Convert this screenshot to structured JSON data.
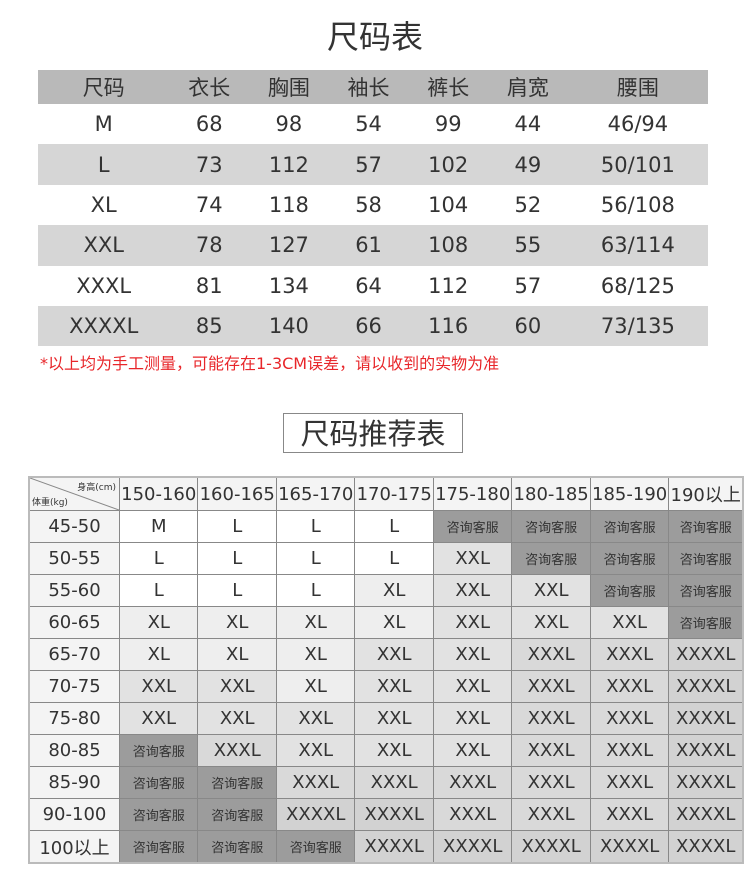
{
  "size_chart": {
    "title": "尺码表",
    "headers": [
      "尺码",
      "衣长",
      "胸围",
      "袖长",
      "裤长",
      "肩宽",
      "腰围"
    ],
    "rows": [
      [
        "M",
        "68",
        "98",
        "54",
        "99",
        "44",
        "46/94"
      ],
      [
        "L",
        "73",
        "112",
        "57",
        "102",
        "49",
        "50/101"
      ],
      [
        "XL",
        "74",
        "118",
        "58",
        "104",
        "52",
        "56/108"
      ],
      [
        "XXL",
        "78",
        "127",
        "61",
        "108",
        "55",
        "63/114"
      ],
      [
        "XXXL",
        "81",
        "134",
        "64",
        "112",
        "57",
        "68/125"
      ],
      [
        "XXXXL",
        "85",
        "140",
        "66",
        "116",
        "60",
        "73/135"
      ]
    ],
    "note": "*以上均为手工测量，可能存在1-3CM误差，请以收到的实物为准"
  },
  "recommend_chart": {
    "title": "尺码推荐表",
    "corner_height": "身高(cm)",
    "corner_weight": "体重(kg)",
    "heights": [
      "150-160",
      "160-165",
      "165-170",
      "170-175",
      "175-180",
      "180-185",
      "185-190",
      "190以上"
    ],
    "rows": [
      {
        "weight": "45-50",
        "sizes": [
          "M",
          "L",
          "L",
          "L",
          "咨询客服",
          "咨询客服",
          "咨询客服",
          "咨询客服"
        ]
      },
      {
        "weight": "50-55",
        "sizes": [
          "L",
          "L",
          "L",
          "L",
          "XXL",
          "咨询客服",
          "咨询客服",
          "咨询客服"
        ]
      },
      {
        "weight": "55-60",
        "sizes": [
          "L",
          "L",
          "L",
          "XL",
          "XXL",
          "XXL",
          "咨询客服",
          "咨询客服"
        ]
      },
      {
        "weight": "60-65",
        "sizes": [
          "XL",
          "XL",
          "XL",
          "XL",
          "XXL",
          "XXL",
          "XXL",
          "咨询客服"
        ]
      },
      {
        "weight": "65-70",
        "sizes": [
          "XL",
          "XL",
          "XL",
          "XXL",
          "XXL",
          "XXXL",
          "XXXL",
          "XXXXL"
        ]
      },
      {
        "weight": "70-75",
        "sizes": [
          "XXL",
          "XXL",
          "XL",
          "XXL",
          "XXL",
          "XXXL",
          "XXXL",
          "XXXXL"
        ]
      },
      {
        "weight": "75-80",
        "sizes": [
          "XXL",
          "XXL",
          "XXL",
          "XXL",
          "XXL",
          "XXXL",
          "XXXL",
          "XXXXL"
        ]
      },
      {
        "weight": "80-85",
        "sizes": [
          "咨询客服",
          "XXXL",
          "XXL",
          "XXL",
          "XXL",
          "XXXL",
          "XXXL",
          "XXXXL"
        ]
      },
      {
        "weight": "85-90",
        "sizes": [
          "咨询客服",
          "咨询客服",
          "XXXL",
          "XXXL",
          "XXXL",
          "XXXL",
          "XXXL",
          "XXXXL"
        ]
      },
      {
        "weight": "90-100",
        "sizes": [
          "咨询客服",
          "咨询客服",
          "XXXXL",
          "XXXXL",
          "XXXL",
          "XXXL",
          "XXXL",
          "XXXXL"
        ]
      },
      {
        "weight": "100以上",
        "sizes": [
          "咨询客服",
          "咨询客服",
          "咨询客服",
          "XXXXL",
          "XXXXL",
          "XXXXL",
          "XXXXL",
          "XXXXL"
        ]
      }
    ],
    "colors": {
      "M": "#ffffff",
      "L": "#ffffff",
      "XL": "#eeeeee",
      "XXL": "#e2e2e2",
      "XXXL": "#d9d9d9",
      "XXXXL": "#d2d2d2",
      "咨询客服": "#9c9c9c"
    }
  }
}
